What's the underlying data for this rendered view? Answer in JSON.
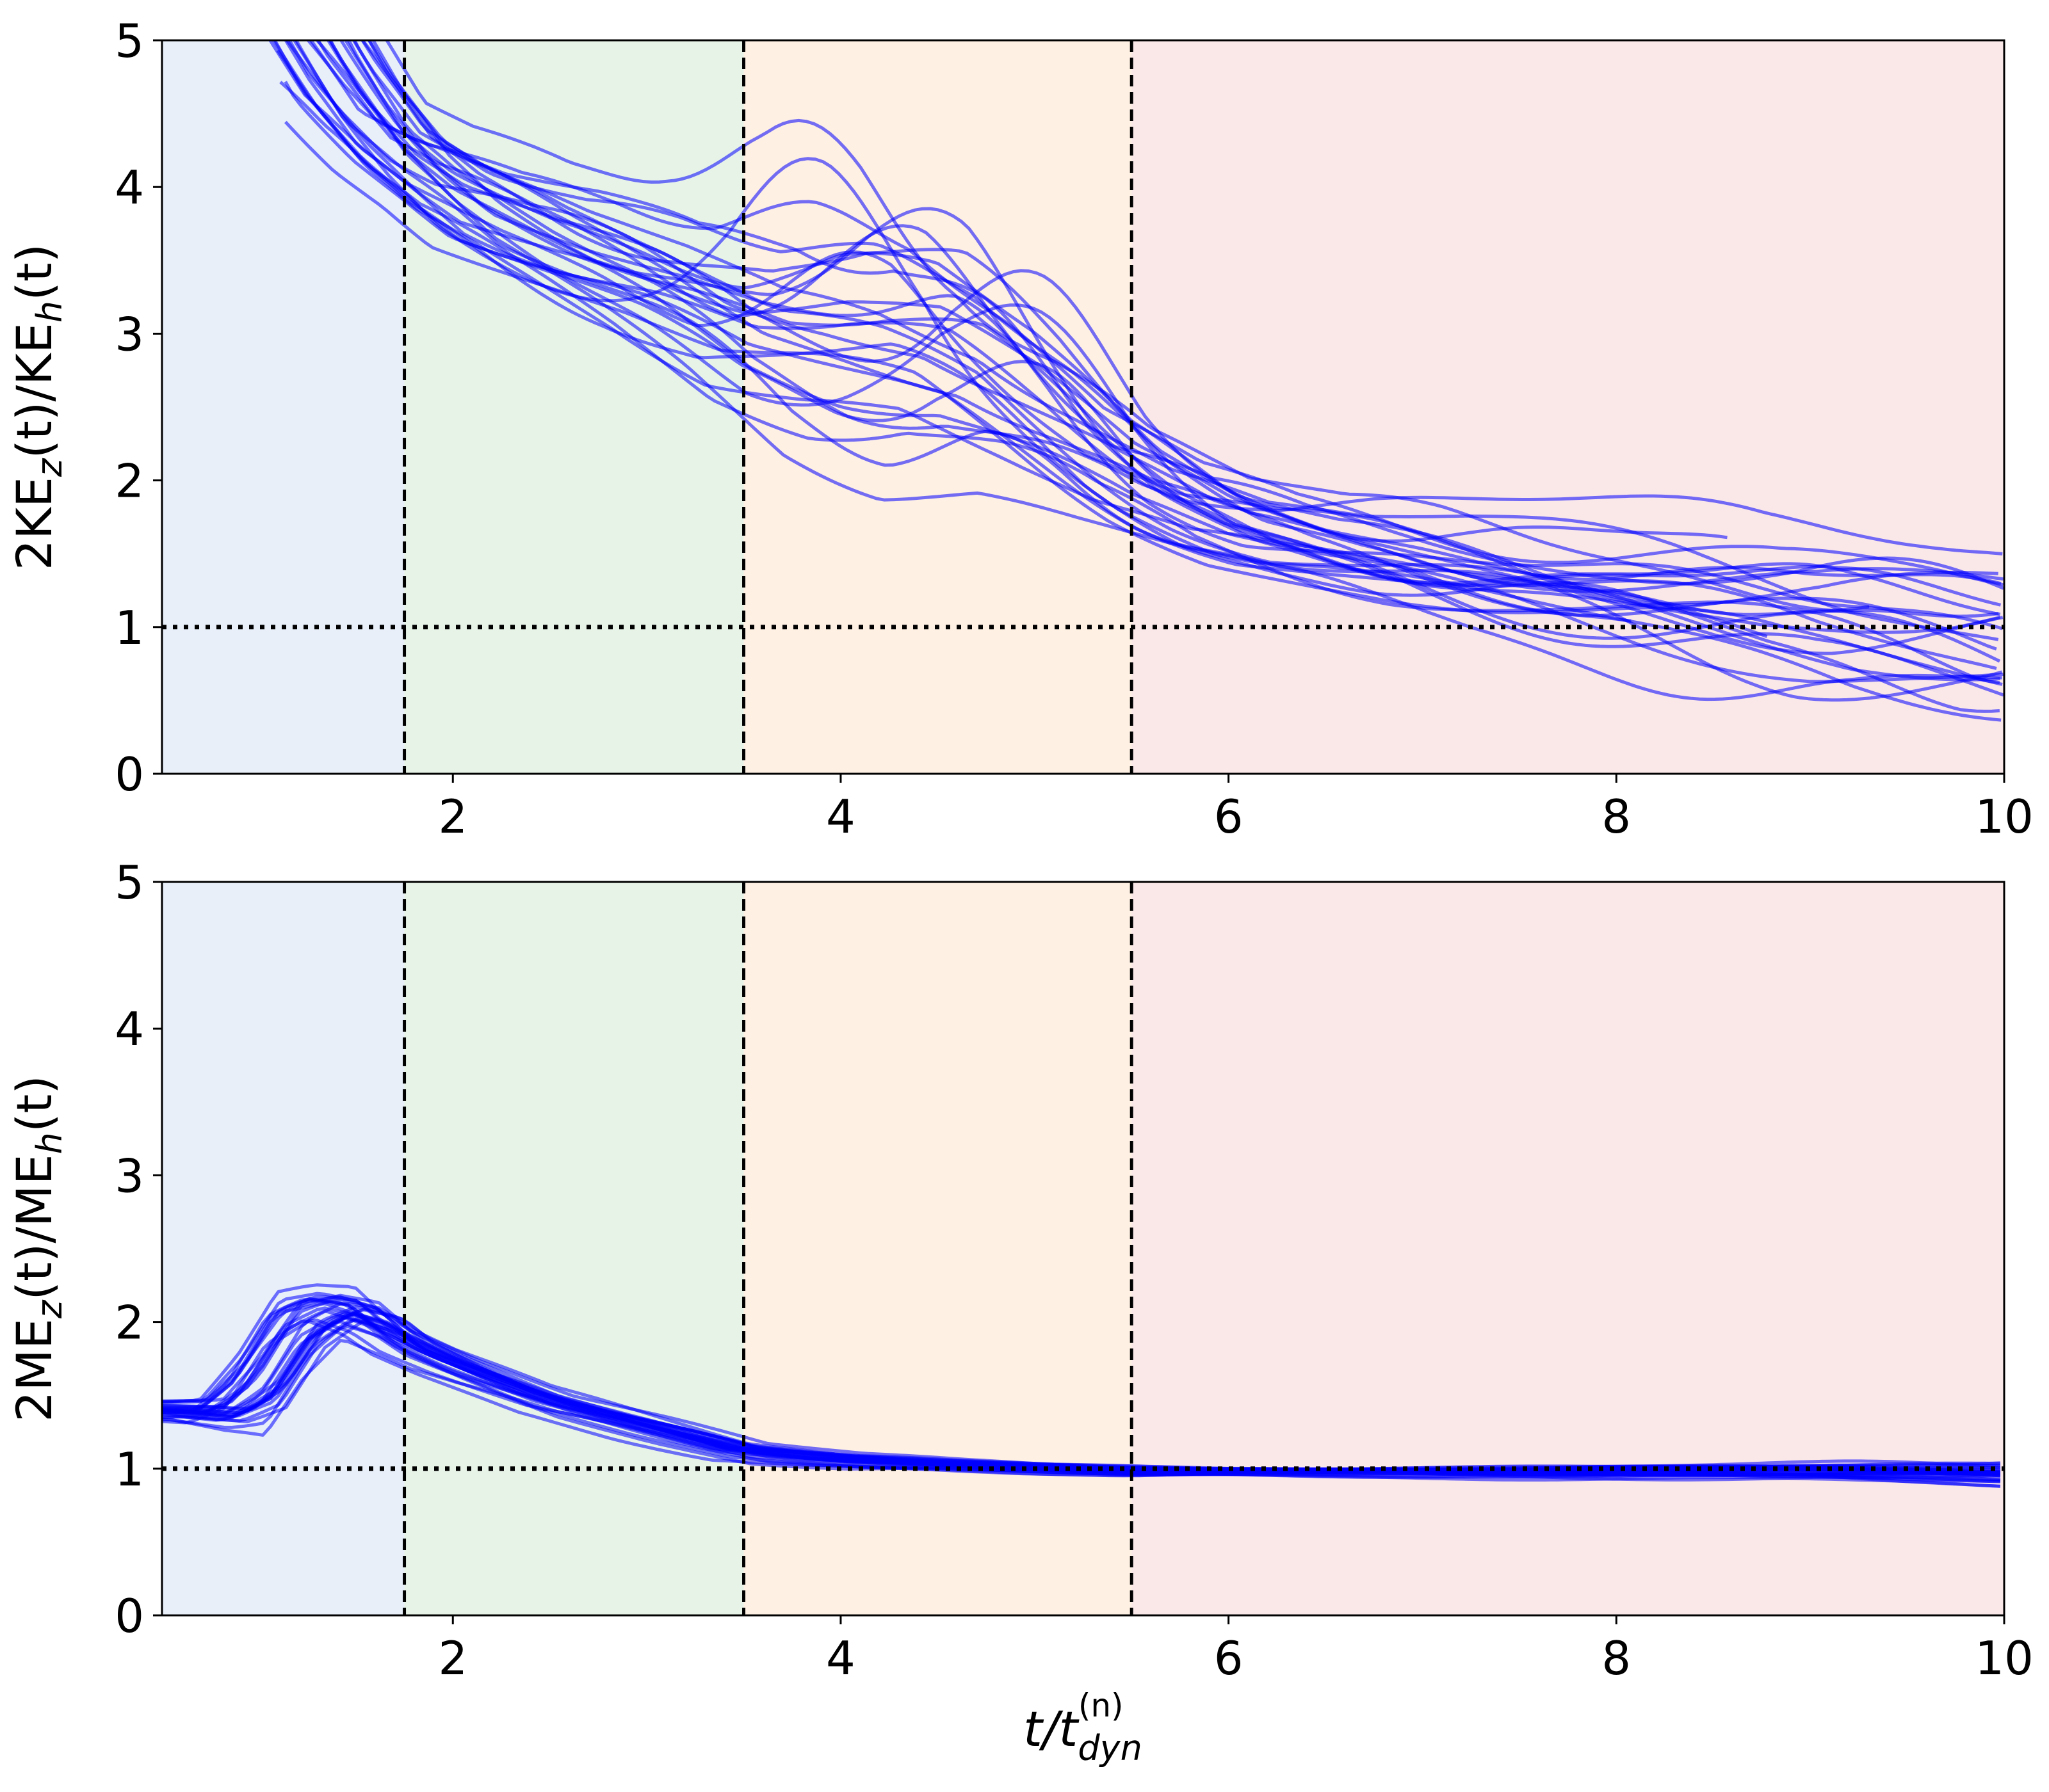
{
  "colors": {
    "line": "#0000ff",
    "phase_fills": [
      "#e8eff8",
      "#e8f3e8",
      "#fef0e3",
      "#fae7e8"
    ],
    "reference": "#000000"
  },
  "chart_data": [
    {
      "type": "line",
      "id": "ke-ratio",
      "ylabel": "2KE_z(t)/KE_h(t)",
      "ylabel_parts": {
        "lead": "2KE",
        "sub1": "z",
        "mid": "(t)/KE",
        "sub2": "h",
        "tail": "(t)"
      },
      "xlim": [
        0.5,
        10
      ],
      "ylim": [
        0,
        5
      ],
      "xticks": [
        2,
        4,
        6,
        8,
        10
      ],
      "yticks": [
        0,
        1,
        2,
        3,
        4,
        5
      ],
      "grid": false,
      "phase_boundaries": [
        1.75,
        3.5,
        5.5
      ],
      "reference_line": 1,
      "series_count": 30,
      "ensemble_summary": {
        "x": [
          0.9,
          1.2,
          1.5,
          1.75,
          2.0,
          2.5,
          3.0,
          3.5,
          4.0,
          4.5,
          5.0,
          5.5,
          6.0,
          6.5,
          7.0,
          8.0,
          9.0,
          10.0
        ],
        "mean": [
          6.0,
          5.2,
          4.6,
          4.2,
          3.95,
          3.65,
          3.4,
          3.1,
          3.0,
          2.85,
          2.45,
          2.0,
          1.7,
          1.55,
          1.45,
          1.25,
          1.05,
          0.95
        ],
        "spread": [
          0.6,
          0.5,
          0.35,
          0.25,
          0.3,
          0.35,
          0.45,
          0.55,
          0.65,
          0.6,
          0.5,
          0.35,
          0.3,
          0.3,
          0.35,
          0.4,
          0.45,
          0.5
        ]
      }
    },
    {
      "type": "line",
      "id": "me-ratio",
      "ylabel": "2ME_z(t)/ME_h(t)",
      "ylabel_parts": {
        "lead": "2ME",
        "sub1": "z",
        "mid": "(t)/ME",
        "sub2": "h",
        "tail": "(t)"
      },
      "xlabel": "t/t_dyn^(n)",
      "xlabel_parts": {
        "base": "t/t",
        "sub": "dyn",
        "sup": "(n)"
      },
      "xlim": [
        0.5,
        10
      ],
      "ylim": [
        0,
        5
      ],
      "xticks": [
        2,
        4,
        6,
        8,
        10
      ],
      "yticks": [
        0,
        1,
        2,
        3,
        4,
        5
      ],
      "grid": false,
      "phase_boundaries": [
        1.75,
        3.5,
        5.5
      ],
      "reference_line": 1,
      "series_count": 30,
      "ensemble_summary": {
        "x": [
          0.5,
          0.8,
          1.0,
          1.2,
          1.4,
          1.6,
          1.75,
          2.0,
          2.5,
          3.0,
          3.5,
          4.0,
          4.5,
          5.0,
          5.5,
          6.0,
          7.0,
          8.0,
          9.0,
          10.0
        ],
        "mean": [
          1.4,
          1.38,
          1.55,
          1.95,
          2.08,
          2.0,
          1.85,
          1.7,
          1.45,
          1.28,
          1.12,
          1.06,
          1.03,
          1.0,
          0.98,
          0.98,
          0.98,
          0.98,
          0.98,
          0.96
        ],
        "spread": [
          0.05,
          0.08,
          0.2,
          0.2,
          0.12,
          0.15,
          0.12,
          0.1,
          0.08,
          0.07,
          0.05,
          0.04,
          0.03,
          0.03,
          0.03,
          0.02,
          0.03,
          0.04,
          0.05,
          0.07
        ]
      }
    }
  ]
}
